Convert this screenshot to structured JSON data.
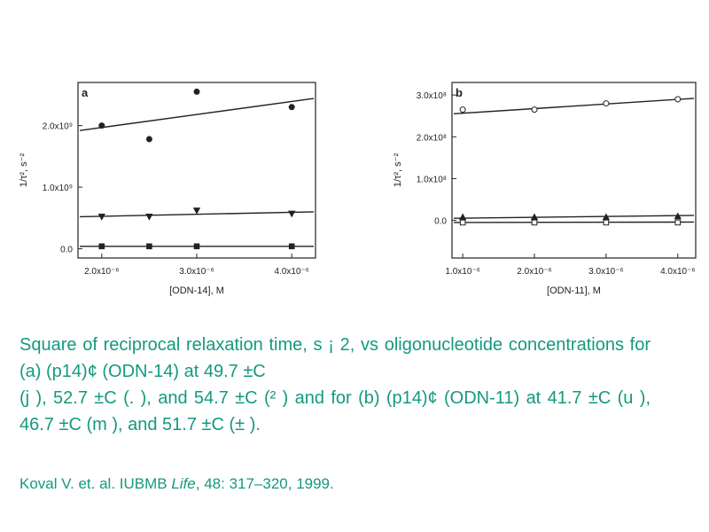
{
  "colors": {
    "caption": "#14997f",
    "plot_ink": "#222222"
  },
  "chart_data": [
    {
      "type": "scatter",
      "panel_label": "a",
      "xlabel": "[ODN-14], M",
      "ylabel": "1/τ², s⁻²",
      "xlim": [
        1.75,
        4.25
      ],
      "ylim": [
        -0.15,
        2.7
      ],
      "x_ticks": [
        2.0,
        3.0,
        4.0
      ],
      "x_tick_labels": [
        "2.0x10⁻⁶",
        "3.0x10⁻⁶",
        "4.0x10⁻⁶"
      ],
      "y_ticks": [
        0.0,
        1.0,
        2.0
      ],
      "y_tick_labels": [
        "0.0",
        "1.0x10⁹",
        "2.0x10⁹"
      ],
      "series": [
        {
          "marker": "circle-filled",
          "x": [
            2.0,
            2.5,
            3.0,
            4.0
          ],
          "y": [
            2.0,
            1.78,
            2.55,
            2.3
          ],
          "fit": [
            1.92,
            2.44
          ]
        },
        {
          "marker": "triangle-down-filled",
          "x": [
            2.0,
            2.5,
            3.0,
            4.0
          ],
          "y": [
            0.52,
            0.52,
            0.62,
            0.57
          ],
          "fit": [
            0.52,
            0.6
          ]
        },
        {
          "marker": "square-filled",
          "x": [
            2.0,
            2.5,
            3.0,
            4.0
          ],
          "y": [
            0.04,
            0.04,
            0.04,
            0.04
          ],
          "fit": [
            0.04,
            0.04
          ]
        }
      ]
    },
    {
      "type": "scatter",
      "panel_label": "b",
      "xlabel": "[ODN-11], M",
      "ylabel": "1/τ², s⁻²",
      "xlim": [
        0.85,
        4.25
      ],
      "ylim": [
        -0.9,
        3.3
      ],
      "x_ticks": [
        1.0,
        2.0,
        3.0,
        4.0
      ],
      "x_tick_labels": [
        "1.0x10⁻⁶",
        "2.0x10⁻⁶",
        "3.0x10⁻⁶",
        "4.0x10⁻⁶"
      ],
      "y_ticks": [
        0.0,
        1.0,
        2.0,
        3.0
      ],
      "y_tick_labels": [
        "0.0",
        "1.0x10⁸",
        "2.0x10⁸",
        "3.0x10⁸"
      ],
      "series": [
        {
          "marker": "circle-open",
          "x": [
            1.0,
            2.0,
            3.0,
            4.0
          ],
          "y": [
            2.65,
            2.65,
            2.8,
            2.9
          ],
          "fit": [
            2.55,
            2.92
          ]
        },
        {
          "marker": "triangle-up-filled",
          "x": [
            1.0,
            2.0,
            3.0,
            4.0
          ],
          "y": [
            0.08,
            0.08,
            0.08,
            0.1
          ],
          "fit": [
            0.05,
            0.12
          ]
        },
        {
          "marker": "square-open",
          "x": [
            1.0,
            2.0,
            3.0,
            4.0
          ],
          "y": [
            -0.05,
            -0.05,
            -0.05,
            -0.05
          ],
          "fit": [
            -0.05,
            -0.04
          ]
        }
      ]
    }
  ],
  "caption": {
    "line1": "Square of reciprocal relaxation time, s ¡ 2, vs oligonucleotide concentrations for (a) (p14)¢ (ODN-14) at 49.7 ±C",
    "line2": "(j ), 52.7 ±C (. ), and 54.7 ±C (² ) and for (b) (p14)¢ (ODN-11) at 41.7 ±C (u ), 46.7 ±C (m ), and 51.7 ±C (± )."
  },
  "reference": {
    "authors": "Koval V. et. al. IUBMB ",
    "journal": "Life",
    "rest": ", 48: 317–320, 1999."
  }
}
